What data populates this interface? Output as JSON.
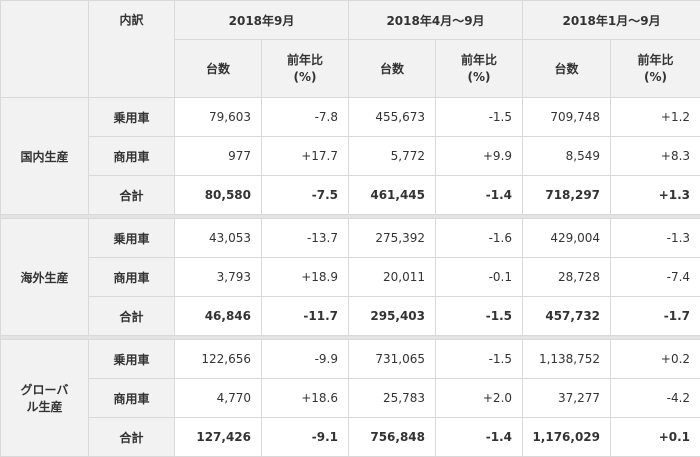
{
  "header": {
    "breakdown": "内訳",
    "periods": [
      "2018年9月",
      "2018年4月～9月",
      "2018年1月～9月"
    ],
    "units_label": "台数",
    "yoy_label": "前年比",
    "yoy_unit": "(%)"
  },
  "groups": [
    {
      "name": "国内生産",
      "rows": [
        {
          "label": "乗用車",
          "bold": false,
          "values": [
            "79,603",
            "-7.8",
            "455,673",
            "-1.5",
            "709,748",
            "+1.2"
          ]
        },
        {
          "label": "商用車",
          "bold": false,
          "values": [
            "977",
            "+17.7",
            "5,772",
            "+9.9",
            "8,549",
            "+8.3"
          ]
        },
        {
          "label": "合計",
          "bold": true,
          "values": [
            "80,580",
            "-7.5",
            "461,445",
            "-1.4",
            "718,297",
            "+1.3"
          ]
        }
      ]
    },
    {
      "name": "海外生産",
      "rows": [
        {
          "label": "乗用車",
          "bold": false,
          "values": [
            "43,053",
            "-13.7",
            "275,392",
            "-1.6",
            "429,004",
            "-1.3"
          ]
        },
        {
          "label": "商用車",
          "bold": false,
          "values": [
            "3,793",
            "+18.9",
            "20,011",
            "-0.1",
            "28,728",
            "-7.4"
          ]
        },
        {
          "label": "合計",
          "bold": true,
          "values": [
            "46,846",
            "-11.7",
            "295,403",
            "-1.5",
            "457,732",
            "-1.7"
          ]
        }
      ]
    },
    {
      "name_line1": "グローバ",
      "name_line2": "ル生産",
      "rows": [
        {
          "label": "乗用車",
          "bold": false,
          "values": [
            "122,656",
            "-9.9",
            "731,065",
            "-1.5",
            "1,138,752",
            "+0.2"
          ]
        },
        {
          "label": "商用車",
          "bold": false,
          "values": [
            "4,770",
            "+18.6",
            "25,783",
            "+2.0",
            "37,277",
            "-4.2"
          ]
        },
        {
          "label": "合計",
          "bold": true,
          "values": [
            "127,426",
            "-9.1",
            "756,848",
            "-1.4",
            "1,176,029",
            "+0.1"
          ]
        }
      ]
    }
  ]
}
